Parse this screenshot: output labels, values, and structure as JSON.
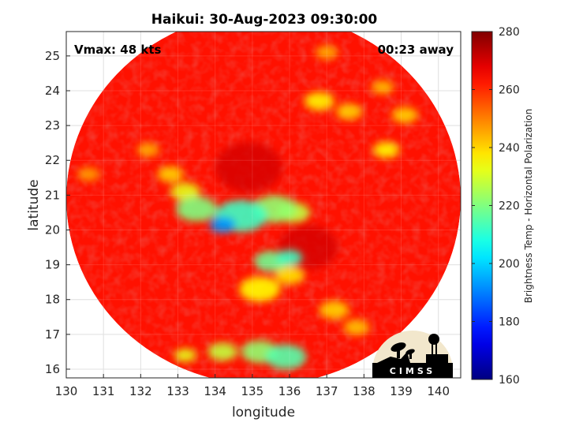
{
  "chart_data": {
    "type": "heatmap",
    "title": "Haikui: 30-Aug-2023 09:30:00",
    "xlabel": "longitude",
    "ylabel": "latitude",
    "xlim": [
      130,
      140.6
    ],
    "ylim": [
      15.75,
      25.7
    ],
    "xticks": [
      130,
      131,
      132,
      133,
      134,
      135,
      136,
      137,
      138,
      139,
      140
    ],
    "yticks": [
      16,
      17,
      18,
      19,
      20,
      21,
      22,
      23,
      24,
      25
    ],
    "grid": true,
    "swath": {
      "center": [
        135.3,
        20.9
      ],
      "radius_lon": 5.3,
      "radius_lat": 5.35
    },
    "colorbar": {
      "label": "Brightness Temp - Horizontal Polarization",
      "range": [
        160,
        280
      ],
      "ticks": [
        160,
        180,
        200,
        220,
        240,
        260,
        280
      ],
      "colormap": "jet"
    },
    "background_tb": 263,
    "features": [
      {
        "lon": 134.2,
        "lat": 20.15,
        "tb": 192,
        "size": 0.35
      },
      {
        "lon": 134.7,
        "lat": 20.4,
        "tb": 212,
        "size": 0.7
      },
      {
        "lon": 133.5,
        "lat": 20.6,
        "tb": 220,
        "size": 0.55
      },
      {
        "lon": 135.6,
        "lat": 20.6,
        "tb": 222,
        "size": 0.6
      },
      {
        "lon": 136.1,
        "lat": 20.5,
        "tb": 228,
        "size": 0.45
      },
      {
        "lon": 136.0,
        "lat": 19.2,
        "tb": 212,
        "size": 0.35
      },
      {
        "lon": 135.5,
        "lat": 19.1,
        "tb": 218,
        "size": 0.45
      },
      {
        "lon": 133.2,
        "lat": 21.1,
        "tb": 232,
        "size": 0.4
      },
      {
        "lon": 132.8,
        "lat": 21.6,
        "tb": 240,
        "size": 0.35
      },
      {
        "lon": 135.2,
        "lat": 18.3,
        "tb": 235,
        "size": 0.55
      },
      {
        "lon": 136.0,
        "lat": 18.7,
        "tb": 238,
        "size": 0.4
      },
      {
        "lon": 137.2,
        "lat": 17.7,
        "tb": 240,
        "size": 0.4
      },
      {
        "lon": 137.8,
        "lat": 17.2,
        "tb": 242,
        "size": 0.35
      },
      {
        "lon": 135.9,
        "lat": 16.35,
        "tb": 215,
        "size": 0.55
      },
      {
        "lon": 135.2,
        "lat": 16.5,
        "tb": 222,
        "size": 0.5
      },
      {
        "lon": 134.2,
        "lat": 16.5,
        "tb": 228,
        "size": 0.4
      },
      {
        "lon": 133.2,
        "lat": 16.4,
        "tb": 232,
        "size": 0.3
      },
      {
        "lon": 136.8,
        "lat": 23.7,
        "tb": 236,
        "size": 0.4
      },
      {
        "lon": 137.6,
        "lat": 23.4,
        "tb": 240,
        "size": 0.35
      },
      {
        "lon": 138.6,
        "lat": 22.3,
        "tb": 235,
        "size": 0.35
      },
      {
        "lon": 139.1,
        "lat": 23.3,
        "tb": 240,
        "size": 0.35
      },
      {
        "lon": 138.5,
        "lat": 24.1,
        "tb": 242,
        "size": 0.3
      },
      {
        "lon": 137.0,
        "lat": 25.1,
        "tb": 244,
        "size": 0.3
      },
      {
        "lon": 132.2,
        "lat": 22.3,
        "tb": 244,
        "size": 0.3
      },
      {
        "lon": 130.6,
        "lat": 21.6,
        "tb": 246,
        "size": 0.3
      }
    ],
    "cold_core": [
      {
        "lon": 134.9,
        "lat": 21.8,
        "tb": 270,
        "size": 0.9
      },
      {
        "lon": 136.5,
        "lat": 19.5,
        "tb": 270,
        "size": 0.8
      }
    ]
  },
  "annotations": {
    "vmax": "Vmax: 48 kts",
    "away": "00:23 away"
  },
  "logo": {
    "text": "CIMSS"
  }
}
